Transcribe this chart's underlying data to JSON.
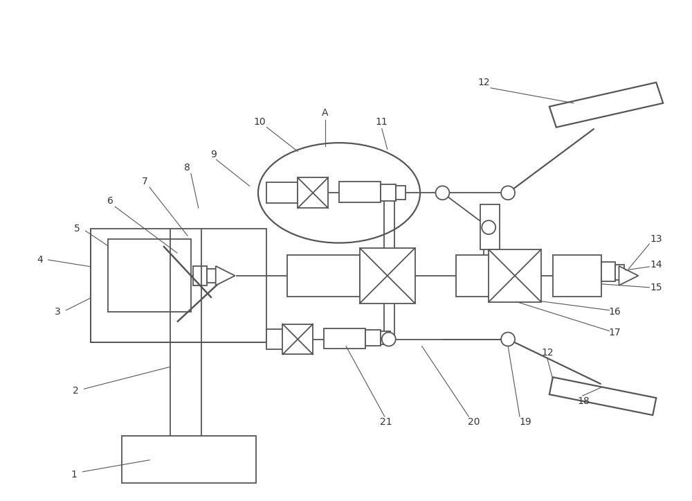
{
  "bg_color": "#ffffff",
  "line_color": "#555555",
  "lw": 1.3,
  "fig_w": 10.0,
  "fig_h": 7.23
}
